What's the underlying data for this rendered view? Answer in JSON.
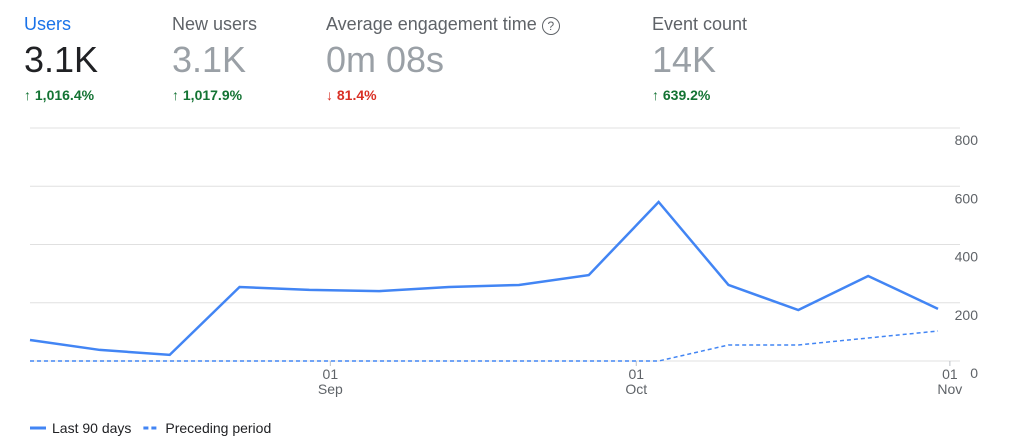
{
  "metrics": [
    {
      "label": "Users",
      "value": "3.1K",
      "delta": "1,016.4%",
      "color": "#137333"
    },
    {
      "label": "New users",
      "value": "3.1K",
      "delta": "1,017.9%",
      "color": "#137333"
    },
    {
      "label": "Average engagement time",
      "value": "0m 08s",
      "delta": "81.4%",
      "color": "#d93025"
    },
    {
      "label": "Event count",
      "value": "14K",
      "delta": "639.2%",
      "color": "#137333"
    }
  ],
  "chart_data": {
    "type": "line",
    "categories": [
      null,
      null,
      null,
      null,
      null,
      null,
      null,
      null,
      null,
      null,
      null,
      null,
      null,
      null
    ],
    "series": [
      {
        "name": "Last 90 days",
        "color": "#4285f4",
        "dashed": false,
        "values": [
          72,
          38,
          21,
          254,
          244,
          240,
          254,
          261,
          295,
          546,
          261,
          175,
          292,
          179
        ]
      },
      {
        "name": "Preceding period",
        "color": "#4285f4",
        "dashed": true,
        "values": [
          0,
          0,
          0,
          0,
          0,
          0,
          0,
          0,
          0,
          0,
          55,
          55,
          79,
          103
        ]
      }
    ],
    "xticks": [
      {
        "value": 4.3,
        "label": "01 Sep"
      },
      {
        "value": 8.68,
        "label": "01 Oct"
      },
      {
        "value": 13.17,
        "label": "01 Nov"
      }
    ],
    "ylim": [
      0,
      800
    ],
    "yticks": [
      0,
      200,
      400,
      600,
      800
    ],
    "grid": true
  }
}
